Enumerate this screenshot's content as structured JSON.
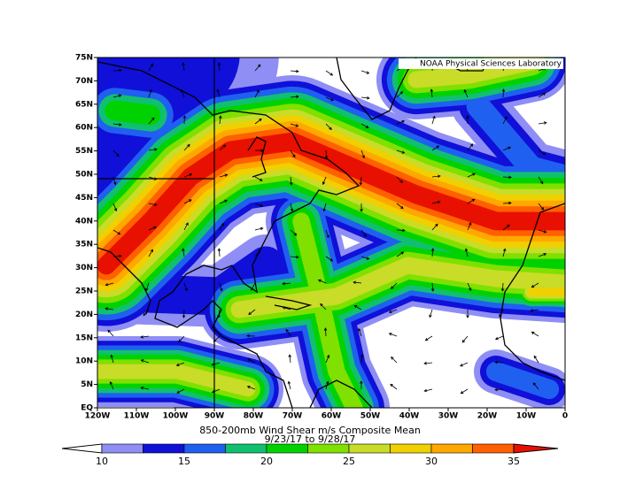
{
  "credit": "NOAA Physical Sciences Laboratory",
  "lat_labels": [
    "75N",
    "70N",
    "65N",
    "60N",
    "55N",
    "50N",
    "45N",
    "40N",
    "35N",
    "30N",
    "25N",
    "20N",
    "15N",
    "10N",
    "5N",
    "EQ"
  ],
  "lon_labels": [
    "120W",
    "110W",
    "100W",
    "90W",
    "80W",
    "70W",
    "60W",
    "50W",
    "40W",
    "30W",
    "20W",
    "10W",
    "0"
  ],
  "title": "850-200mb Wind Shear m/s Composite Mean",
  "subtitle": "9/23/17  to 9/28/17",
  "colorbar": {
    "labels": [
      10,
      15,
      20,
      25,
      30,
      35
    ],
    "colors": [
      "#ffffff",
      "#8e8ef5",
      "#1010d8",
      "#2060f0",
      "#10c070",
      "#00d200",
      "#80e000",
      "#c8dc28",
      "#f0d000",
      "#ffa800",
      "#ff6000",
      "#e81000"
    ]
  }
}
